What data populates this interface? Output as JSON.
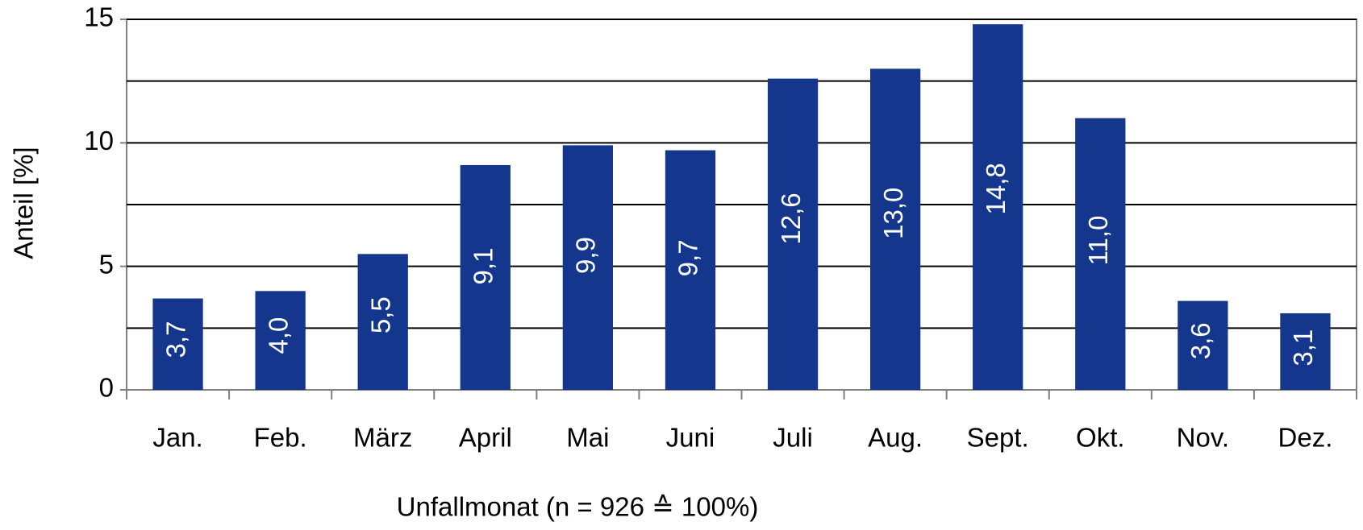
{
  "chart_data": {
    "type": "bar",
    "x_label": "Unfallmonat (n = 926 ≙ 100%)",
    "y_label": "Anteil [%]",
    "categories": [
      "Jan.",
      "Feb.",
      "März",
      "April",
      "Mai",
      "Juni",
      "Juli",
      "Aug.",
      "Sept.",
      "Okt.",
      "Nov.",
      "Dez."
    ],
    "values": [
      3.7,
      4.0,
      5.5,
      9.1,
      9.9,
      9.7,
      12.6,
      13.0,
      14.8,
      11.0,
      3.6,
      3.1
    ],
    "value_labels": [
      "3,7",
      "4,0",
      "5,5",
      "9,1",
      "9,9",
      "9,7",
      "12,6",
      "13,0",
      "14,8",
      "11,0",
      "3,6",
      "3,1"
    ],
    "color": "#14368c",
    "ylim": [
      0,
      15
    ],
    "yticks": [
      0,
      5,
      10,
      15
    ],
    "minor_yticks": [
      2.5,
      7.5,
      12.5
    ],
    "grid": true
  }
}
